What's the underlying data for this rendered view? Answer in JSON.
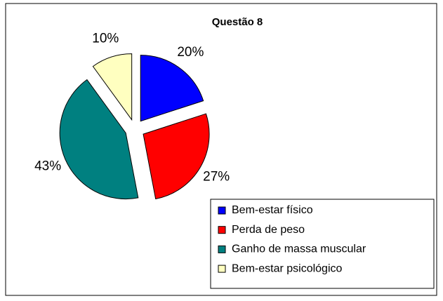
{
  "chart_data": {
    "type": "pie",
    "title": "Questão 8",
    "categories": [
      "Bem-estar físico",
      "Perda de peso",
      "Ganho de massa muscular",
      "Bem-estar psicológico"
    ],
    "values": [
      20,
      27,
      43,
      10
    ],
    "value_labels": [
      "20%",
      "27%",
      "43%",
      "10%"
    ],
    "colors": [
      "#0000ff",
      "#ff0000",
      "#008080",
      "#ffffc0"
    ]
  }
}
